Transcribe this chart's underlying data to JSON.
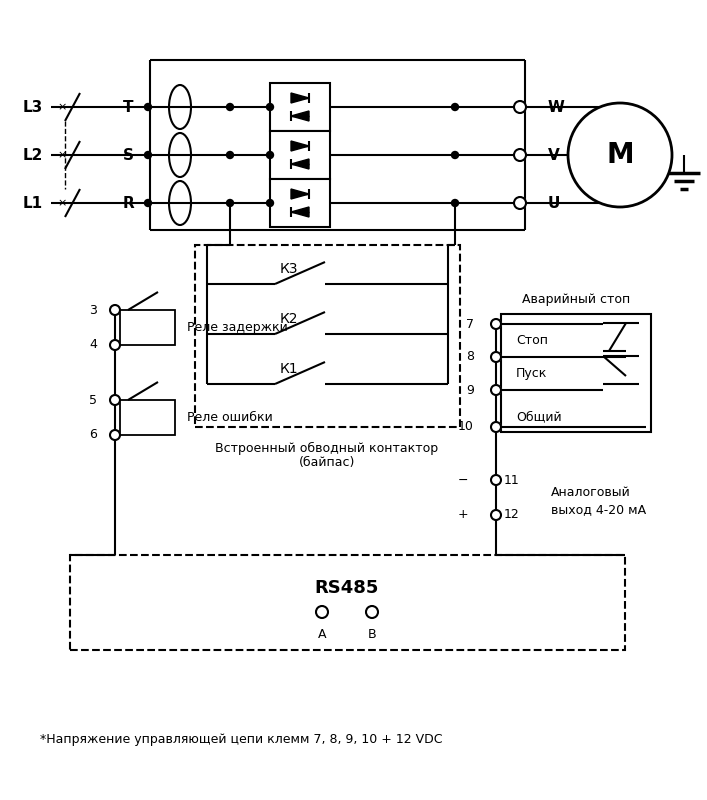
{
  "footnote": "*Напряжение управляющей цепи клемм 7, 8, 9, 10 + 12 VDC",
  "bg_color": "#ffffff",
  "line_color": "#000000",
  "L_labels": [
    "L3",
    "L2",
    "L1"
  ],
  "T_labels": [
    "T",
    "S",
    "R"
  ],
  "output_labels": [
    "W",
    "V",
    "U"
  ],
  "bypass_label_line1": "Встроенный обводный контактор",
  "bypass_label_line2": "(байпас)",
  "K_labels": [
    "К3",
    "К2",
    "К1"
  ],
  "relay_delay_label": "Реле задержки",
  "relay_error_label": "Реле ошибки",
  "rs485_label": "RS485",
  "emerg_stop_label": "Аварийный стоп",
  "stop_label": "Стоп",
  "start_label": "Пуск",
  "common_label": "Общий",
  "analog_label_line1": "Аналоговый",
  "analog_label_line2": "выход 4-20 мА",
  "term_A": "A",
  "term_B": "B"
}
